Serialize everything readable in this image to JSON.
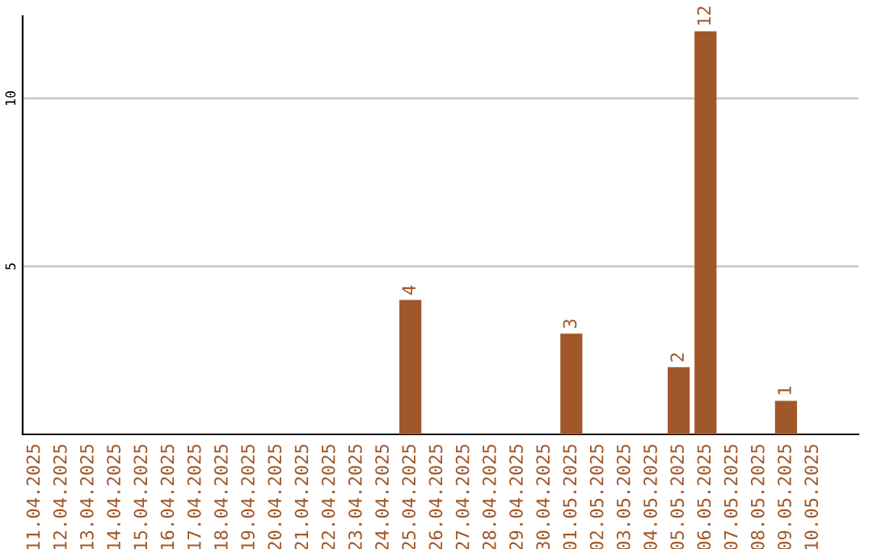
{
  "chart_data": {
    "type": "bar",
    "categories": [
      "11.04.2025",
      "12.04.2025",
      "13.04.2025",
      "14.04.2025",
      "15.04.2025",
      "16.04.2025",
      "17.04.2025",
      "18.04.2025",
      "19.04.2025",
      "20.04.2025",
      "21.04.2025",
      "22.04.2025",
      "23.04.2025",
      "24.04.2025",
      "25.04.2025",
      "26.04.2025",
      "27.04.2025",
      "28.04.2025",
      "29.04.2025",
      "30.04.2025",
      "01.05.2025",
      "02.05.2025",
      "03.05.2025",
      "04.05.2025",
      "05.05.2025",
      "06.05.2025",
      "07.05.2025",
      "08.05.2025",
      "09.05.2025",
      "10.05.2025"
    ],
    "values": [
      0,
      0,
      0,
      0,
      0,
      0,
      0,
      0,
      0,
      0,
      0,
      0,
      0,
      0,
      4,
      0,
      0,
      0,
      0,
      0,
      3,
      0,
      0,
      0,
      2,
      12,
      0,
      0,
      1,
      0
    ],
    "value_labels": [
      null,
      null,
      null,
      null,
      null,
      null,
      null,
      null,
      null,
      null,
      null,
      null,
      null,
      null,
      "4",
      null,
      null,
      null,
      null,
      null,
      "3",
      null,
      null,
      null,
      "2",
      "12",
      null,
      null,
      "1",
      null
    ],
    "color": "#a0582a",
    "ylim": [
      0,
      12.45
    ],
    "yticks": [
      5,
      10
    ],
    "grid": "y",
    "legend": false
  }
}
